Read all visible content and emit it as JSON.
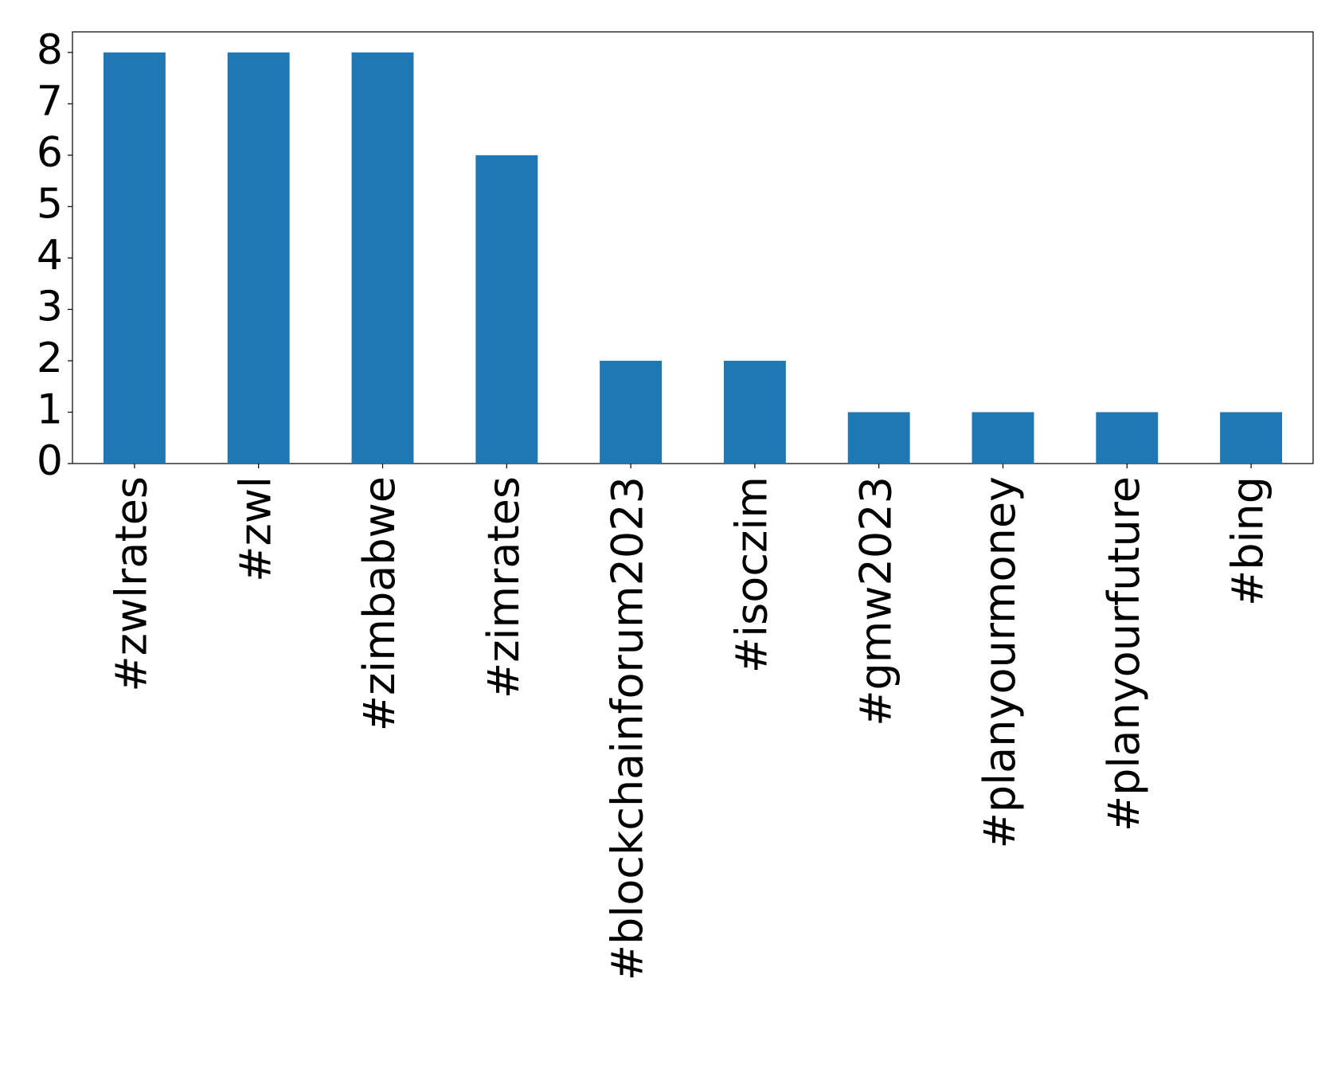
{
  "chart_data": {
    "type": "bar",
    "categories": [
      "#zwlrates",
      "#zwl",
      "#zimbabwe",
      "#zimrates",
      "#blockchainforum2023",
      "#isoczim",
      "#gmw2023",
      "#planyourmoney",
      "#planyourfuture",
      "#bing"
    ],
    "values": [
      8,
      8,
      8,
      6,
      2,
      2,
      1,
      1,
      1,
      1
    ],
    "color": "#1f77b4",
    "ylim": [
      0,
      8.4
    ],
    "yticks": [
      0,
      1,
      2,
      3,
      4,
      5,
      6,
      7,
      8
    ],
    "grid": false
  }
}
